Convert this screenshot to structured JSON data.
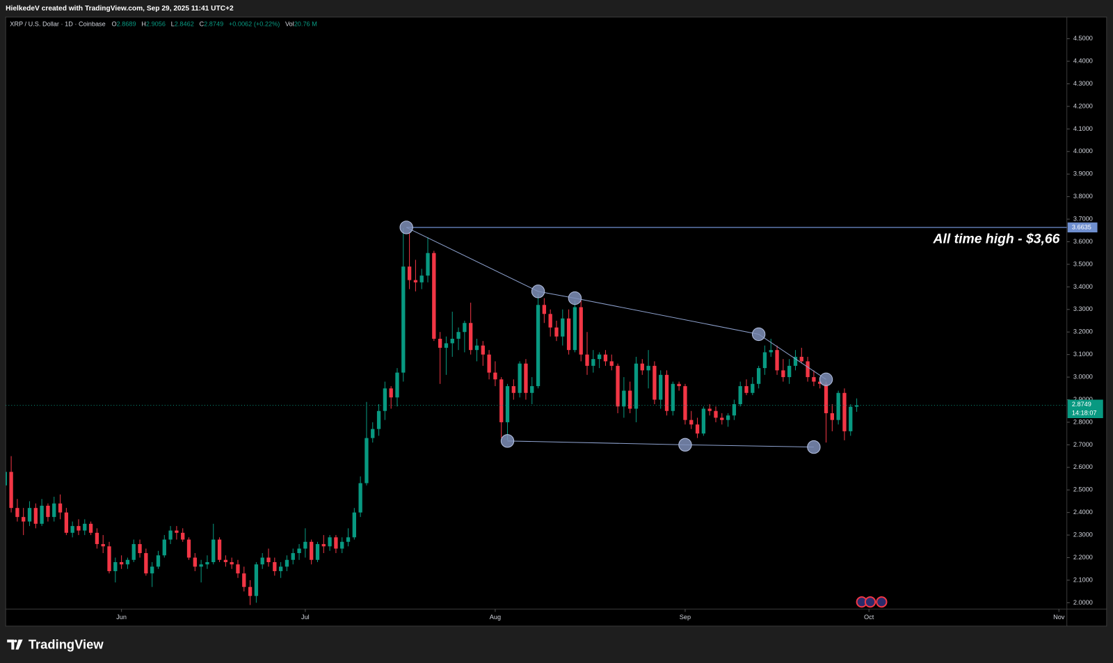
{
  "header": {
    "credit": "HielkedeV created with TradingView.com, Sep 29, 2025 11:41 UTC+2"
  },
  "footer": {
    "brand": "TradingView"
  },
  "chart_data": {
    "type": "candlestick",
    "symbol": "XRP / U.S. Dollar · 1D · Coinbase",
    "legend_labels": [
      "O",
      "H",
      "L",
      "C"
    ],
    "change": "+0.0062 (+0.22%)",
    "volume_label": "Vol",
    "volume": "20.76 M",
    "countdown": "14:18:07",
    "up_color": "#089981",
    "down_color": "#f23645",
    "categories": [
      null,
      null,
      null,
      null,
      null,
      null,
      null,
      null,
      null,
      null,
      null,
      null,
      null,
      null,
      null,
      null,
      null,
      null,
      null,
      null,
      null,
      null,
      null,
      null,
      null,
      null,
      null,
      null,
      null,
      null,
      null,
      null,
      null,
      null,
      null,
      null,
      null,
      null,
      null,
      null,
      null,
      null,
      null,
      null,
      null,
      null,
      null,
      null,
      null,
      null,
      null,
      null,
      null,
      null,
      null,
      null,
      null,
      null,
      null,
      null,
      null,
      null,
      null,
      null,
      null,
      null,
      null,
      null,
      null,
      null,
      null,
      null,
      null,
      null,
      null,
      null,
      null,
      null,
      null,
      null,
      null,
      null,
      null,
      null,
      null,
      null,
      null,
      null,
      null,
      null,
      null,
      null,
      null,
      null,
      null,
      null,
      null,
      null,
      null,
      null,
      null,
      null,
      null,
      null,
      null,
      null,
      null,
      null,
      null,
      null,
      null,
      null,
      null,
      null,
      null,
      null,
      null,
      null,
      null,
      null,
      null,
      null,
      null,
      null,
      null,
      null,
      null,
      null,
      null,
      null,
      null,
      null,
      null,
      null,
      null,
      null,
      null,
      null,
      null,
      null
    ],
    "open": [
      2.52,
      2.58,
      2.42,
      2.38,
      2.36,
      2.42,
      2.35,
      2.43,
      2.38,
      2.44,
      2.4,
      2.31,
      2.34,
      2.32,
      2.35,
      2.31,
      2.26,
      2.25,
      2.14,
      2.18,
      2.17,
      2.19,
      2.26,
      2.22,
      2.13,
      2.16,
      2.21,
      2.28,
      2.32,
      2.31,
      2.28,
      2.2,
      2.16,
      2.17,
      2.18,
      2.28,
      2.19,
      2.18,
      2.17,
      2.13,
      2.07,
      2.03,
      2.17,
      2.2,
      2.18,
      2.14,
      2.16,
      2.19,
      2.22,
      2.24,
      2.27,
      2.19,
      2.26,
      2.25,
      2.29,
      2.24,
      2.27,
      2.29,
      2.4,
      2.53,
      2.73,
      2.77,
      2.85,
      2.95,
      2.91,
      3.02,
      3.49,
      3.43,
      3.42,
      3.45,
      3.55,
      3.17,
      3.13,
      3.15,
      3.17,
      3.2,
      3.24,
      3.12,
      3.14,
      3.1,
      3.02,
      2.99,
      2.8,
      2.96,
      2.93,
      3.06,
      2.93,
      2.96,
      3.32,
      3.28,
      3.22,
      3.18,
      3.26,
      3.12,
      3.31,
      3.1,
      3.05,
      3.08,
      3.1,
      3.07,
      3.05,
      2.87,
      2.94,
      2.86,
      3.06,
      3.03,
      3.05,
      2.9,
      3.01,
      2.85,
      2.97,
      2.96,
      2.81,
      2.79,
      2.75,
      2.86,
      2.85,
      2.82,
      2.81,
      2.83,
      2.88,
      2.96,
      2.93,
      2.97,
      3.04,
      3.11,
      3.12,
      3.03,
      3.0,
      3.05,
      3.09,
      3.07,
      3.0,
      2.98,
      2.97,
      2.84,
      2.81,
      2.93,
      2.76,
      2.8689
    ],
    "high": [
      2.6,
      2.65,
      2.46,
      2.42,
      2.45,
      2.44,
      2.46,
      2.44,
      2.47,
      2.48,
      2.42,
      2.36,
      2.37,
      2.37,
      2.36,
      2.33,
      2.3,
      2.27,
      2.2,
      2.21,
      2.2,
      2.28,
      2.28,
      2.24,
      2.18,
      2.23,
      2.3,
      2.34,
      2.34,
      2.33,
      2.29,
      2.22,
      2.19,
      2.21,
      2.35,
      2.29,
      2.21,
      2.2,
      2.19,
      2.16,
      2.1,
      2.18,
      2.22,
      2.24,
      2.2,
      2.18,
      2.21,
      2.24,
      2.26,
      2.33,
      2.28,
      2.27,
      2.3,
      2.3,
      2.3,
      2.29,
      2.33,
      2.42,
      2.56,
      2.89,
      2.8,
      2.88,
      2.98,
      2.96,
      3.04,
      3.66,
      3.64,
      3.52,
      3.48,
      3.62,
      3.56,
      3.2,
      3.18,
      3.29,
      3.22,
      3.25,
      3.33,
      3.17,
      3.16,
      3.12,
      3.07,
      3.0,
      2.97,
      2.99,
      3.07,
      3.08,
      3.0,
      3.37,
      3.35,
      3.3,
      3.25,
      3.3,
      3.3,
      3.34,
      3.34,
      3.2,
      3.12,
      3.11,
      3.12,
      3.1,
      3.06,
      3.0,
      2.98,
      3.09,
      3.08,
      3.12,
      3.07,
      3.03,
      3.03,
      2.98,
      2.98,
      2.97,
      2.85,
      2.82,
      2.87,
      2.88,
      2.87,
      2.84,
      2.84,
      2.9,
      2.98,
      2.99,
      3.0,
      3.05,
      3.14,
      3.17,
      3.14,
      3.08,
      3.08,
      3.12,
      3.13,
      3.09,
      3.03,
      3.0,
      2.98,
      2.88,
      2.94,
      2.95,
      2.88,
      2.9056
    ],
    "low": [
      2.5,
      2.4,
      2.36,
      2.3,
      2.34,
      2.33,
      2.34,
      2.36,
      2.36,
      2.37,
      2.3,
      2.29,
      2.3,
      2.3,
      2.3,
      2.24,
      2.22,
      2.13,
      2.09,
      2.15,
      2.15,
      2.18,
      2.2,
      2.12,
      2.07,
      2.15,
      2.2,
      2.26,
      2.28,
      2.27,
      2.19,
      2.14,
      2.09,
      2.15,
      2.17,
      2.18,
      2.16,
      2.15,
      2.11,
      2.05,
      1.99,
      2.0,
      2.15,
      2.16,
      2.12,
      2.11,
      2.14,
      2.17,
      2.19,
      2.2,
      2.17,
      2.18,
      2.22,
      2.23,
      2.22,
      2.22,
      2.25,
      2.28,
      2.38,
      2.52,
      2.71,
      2.74,
      2.81,
      2.86,
      2.87,
      2.98,
      3.39,
      3.38,
      3.39,
      3.42,
      3.16,
      2.97,
      3.01,
      3.09,
      3.12,
      3.11,
      3.1,
      3.07,
      3.05,
      2.99,
      2.96,
      2.73,
      2.72,
      2.9,
      2.91,
      2.9,
      2.88,
      2.95,
      3.24,
      3.18,
      3.16,
      3.14,
      3.1,
      3.11,
      3.07,
      3.01,
      3.02,
      3.04,
      3.05,
      3.03,
      2.84,
      2.82,
      2.84,
      2.8,
      3.01,
      2.95,
      2.88,
      2.86,
      2.83,
      2.83,
      2.94,
      2.79,
      2.77,
      2.73,
      2.74,
      2.83,
      2.8,
      2.79,
      2.78,
      2.81,
      2.87,
      2.92,
      2.92,
      2.95,
      3.01,
      3.09,
      3.01,
      2.98,
      2.97,
      3.03,
      3.06,
      2.98,
      2.96,
      2.95,
      2.71,
      2.76,
      2.79,
      2.72,
      2.74,
      2.8462
    ],
    "close": [
      2.58,
      2.42,
      2.38,
      2.36,
      2.42,
      2.35,
      2.43,
      2.38,
      2.44,
      2.4,
      2.31,
      2.34,
      2.32,
      2.35,
      2.31,
      2.26,
      2.25,
      2.14,
      2.18,
      2.17,
      2.19,
      2.26,
      2.22,
      2.13,
      2.16,
      2.21,
      2.28,
      2.32,
      2.31,
      2.28,
      2.2,
      2.16,
      2.17,
      2.18,
      2.28,
      2.19,
      2.18,
      2.17,
      2.13,
      2.07,
      2.03,
      2.17,
      2.2,
      2.18,
      2.14,
      2.16,
      2.19,
      2.22,
      2.24,
      2.27,
      2.19,
      2.26,
      2.25,
      2.29,
      2.24,
      2.27,
      2.29,
      2.4,
      2.53,
      2.73,
      2.77,
      2.85,
      2.95,
      2.91,
      3.02,
      3.49,
      3.43,
      3.42,
      3.45,
      3.55,
      3.17,
      3.13,
      3.15,
      3.17,
      3.2,
      3.24,
      3.12,
      3.14,
      3.1,
      3.02,
      2.99,
      2.8,
      2.96,
      2.93,
      3.06,
      2.93,
      2.96,
      3.32,
      3.28,
      3.22,
      3.18,
      3.26,
      3.12,
      3.31,
      3.1,
      3.05,
      3.08,
      3.1,
      3.07,
      3.05,
      2.87,
      2.94,
      2.86,
      3.06,
      3.03,
      3.05,
      2.9,
      3.01,
      2.85,
      2.97,
      2.96,
      2.81,
      2.79,
      2.75,
      2.86,
      2.85,
      2.82,
      2.81,
      2.83,
      2.88,
      2.96,
      2.93,
      2.97,
      3.04,
      3.11,
      3.12,
      3.03,
      3.0,
      3.05,
      3.09,
      3.07,
      3.0,
      2.98,
      2.97,
      2.84,
      2.81,
      2.93,
      2.76,
      2.8687,
      2.8749
    ],
    "xlim": [
      0.1,
      173.3
    ],
    "xticks": [
      {
        "value": 19,
        "label": "Jun"
      },
      {
        "value": 49,
        "label": "Jul"
      },
      {
        "value": 80,
        "label": "Aug"
      },
      {
        "value": 111,
        "label": "Sep"
      },
      {
        "value": 141,
        "label": "Oct"
      },
      {
        "value": 172,
        "label": "Nov"
      }
    ],
    "ylim": [
      1.972,
      4.596
    ],
    "yticks": [
      {
        "value": 2.0,
        "label": "2.0000"
      },
      {
        "value": 2.1,
        "label": "2.1000"
      },
      {
        "value": 2.2,
        "label": "2.2000"
      },
      {
        "value": 2.3,
        "label": "2.3000"
      },
      {
        "value": 2.4,
        "label": "2.4000"
      },
      {
        "value": 2.5,
        "label": "2.5000"
      },
      {
        "value": 2.6,
        "label": "2.6000"
      },
      {
        "value": 2.7,
        "label": "2.7000"
      },
      {
        "value": 2.8,
        "label": "2.8000"
      },
      {
        "value": 2.9,
        "label": "2.9000"
      },
      {
        "value": 3.0,
        "label": "3.0000"
      },
      {
        "value": 3.1,
        "label": "3.1000"
      },
      {
        "value": 3.2,
        "label": "3.2000"
      },
      {
        "value": 3.3,
        "label": "3.3000"
      },
      {
        "value": 3.4,
        "label": "3.4000"
      },
      {
        "value": 3.5,
        "label": "3.5000"
      },
      {
        "value": 3.6,
        "label": "3.6000"
      },
      {
        "value": 3.7,
        "label": "3.7000"
      },
      {
        "value": 3.8,
        "label": "3.8000"
      },
      {
        "value": 3.9,
        "label": "3.9000"
      },
      {
        "value": 4.0,
        "label": "4.0000"
      },
      {
        "value": 4.1,
        "label": "4.1000"
      },
      {
        "value": 4.2,
        "label": "4.2000"
      },
      {
        "value": 4.3,
        "label": "4.3000"
      },
      {
        "value": 4.4,
        "label": "4.4000"
      },
      {
        "value": 4.5,
        "label": "4.5000"
      }
    ],
    "grid": false,
    "ath": {
      "value": 3.6635,
      "annotation": "All time high - $3,66",
      "color": "#6f8fcf"
    },
    "trendlines": [
      {
        "x": [
          65.5,
          87,
          93,
          123,
          134
        ],
        "y": [
          3.6635,
          3.38,
          3.35,
          3.19,
          2.99
        ]
      },
      {
        "x": [
          82,
          111,
          132
        ],
        "y": [
          2.717,
          2.7,
          2.69
        ]
      }
    ],
    "trendline_color": "#8ea2cf"
  }
}
